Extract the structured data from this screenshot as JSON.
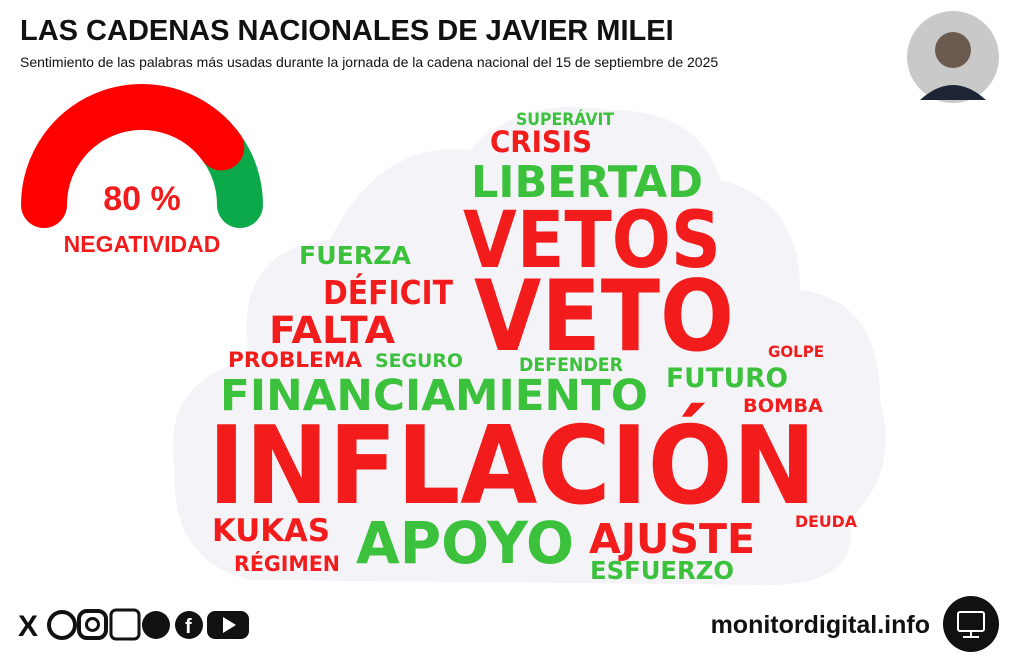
{
  "header": {
    "title": "LAS CADENAS NACIONALES DE JAVIER MILEI",
    "subtitle": "Sentimiento de las palabras más usadas durante la jornada de la cadena nacional del 15 de septiembre de 2025"
  },
  "gauge": {
    "value": 80,
    "value_label": "80 %",
    "label": "NEGATIVIDAD",
    "max": 100,
    "colors": {
      "negative": "#ff0000",
      "positive": "#0ca94a"
    }
  },
  "word_colors": {
    "negative": "#f21c1c",
    "positive": "#3cc13c"
  },
  "words": [
    {
      "text": "SUPERÁVIT",
      "sentiment": "positive"
    },
    {
      "text": "CRISIS",
      "sentiment": "negative"
    },
    {
      "text": "LIBERTAD",
      "sentiment": "positive"
    },
    {
      "text": "VETOS",
      "sentiment": "negative"
    },
    {
      "text": "FUERZA",
      "sentiment": "positive"
    },
    {
      "text": "DÉFICIT",
      "sentiment": "negative"
    },
    {
      "text": "VETO",
      "sentiment": "negative"
    },
    {
      "text": "FALTA",
      "sentiment": "negative"
    },
    {
      "text": "PROBLEMA",
      "sentiment": "negative"
    },
    {
      "text": "SEGURO",
      "sentiment": "positive"
    },
    {
      "text": "DEFENDER",
      "sentiment": "positive"
    },
    {
      "text": "GOLPE",
      "sentiment": "negative"
    },
    {
      "text": "FUTURO",
      "sentiment": "positive"
    },
    {
      "text": "FINANCIAMIENTO",
      "sentiment": "positive"
    },
    {
      "text": "BOMBA",
      "sentiment": "negative"
    },
    {
      "text": "INFLACIÓN",
      "sentiment": "negative"
    },
    {
      "text": "DEUDA",
      "sentiment": "negative"
    },
    {
      "text": "KUKAS",
      "sentiment": "negative"
    },
    {
      "text": "APOYO",
      "sentiment": "positive"
    },
    {
      "text": "AJUSTE",
      "sentiment": "negative"
    },
    {
      "text": "RÉGIMEN",
      "sentiment": "negative"
    },
    {
      "text": "ESFUERZO",
      "sentiment": "positive"
    }
  ],
  "footer": {
    "site": "monitordigital.info"
  }
}
